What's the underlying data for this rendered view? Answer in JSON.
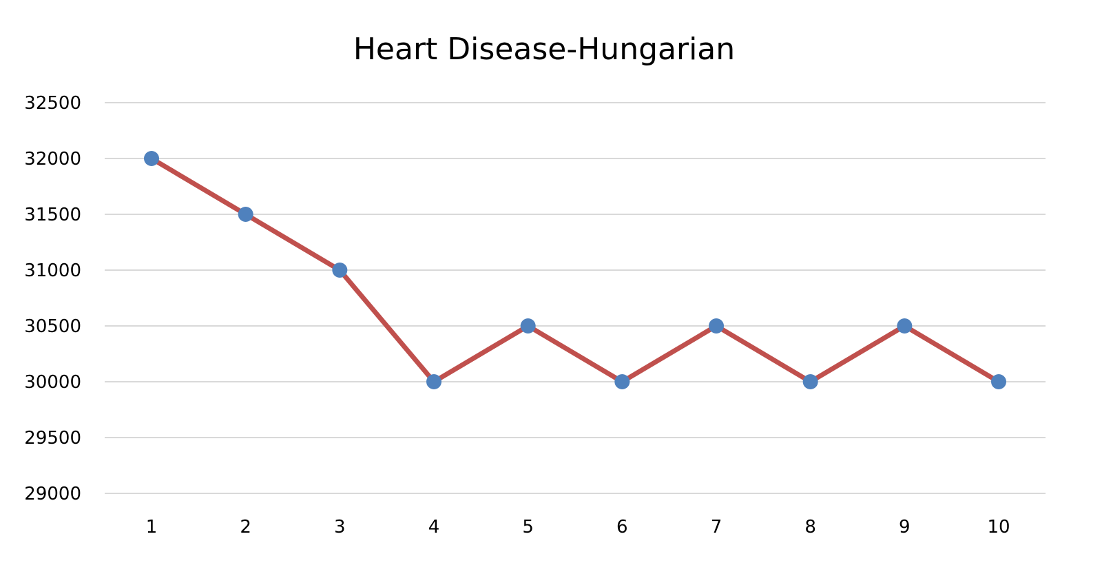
{
  "chart_data": {
    "type": "line",
    "title": "Heart Disease-Hungarian",
    "xlabel": "",
    "ylabel": "",
    "categories": [
      "1",
      "2",
      "3",
      "4",
      "5",
      "6",
      "7",
      "8",
      "9",
      "10"
    ],
    "series": [
      {
        "values": [
          32000,
          31500,
          31000,
          30000,
          30500,
          30000,
          30500,
          30000,
          30500,
          30000
        ]
      }
    ],
    "ylim": [
      29000,
      32500
    ],
    "yticks": [
      29000,
      29500,
      30000,
      30500,
      31000,
      31500,
      32000,
      32500
    ],
    "grid": true,
    "legend": "none",
    "colors": {
      "line": "#C0504D",
      "marker": "#4F81BD",
      "grid": "#D9D9D9"
    }
  }
}
